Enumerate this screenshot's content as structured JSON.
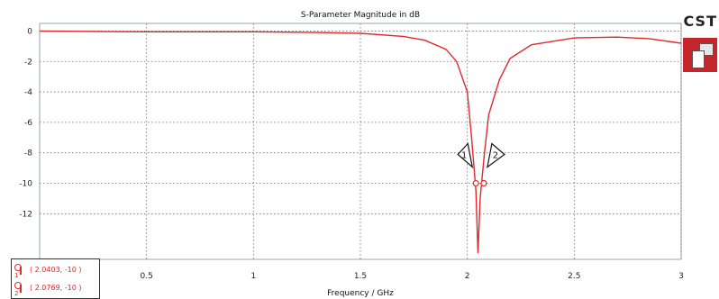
{
  "chart_data": {
    "type": "line",
    "title": "S-Parameter Magnitude in dB",
    "xlabel": "Frequency / GHz",
    "ylabel": "",
    "xlim": [
      0,
      3
    ],
    "ylim": [
      -15,
      0.5
    ],
    "x_ticks": [
      0.5,
      1,
      1.5,
      2,
      2.5,
      3
    ],
    "x_tick_labels": [
      "0.5",
      "1",
      "1.5",
      "2",
      "2.5",
      "3"
    ],
    "y_ticks": [
      0,
      -2,
      -4,
      -6,
      -8,
      -10,
      -12
    ],
    "y_tick_labels": [
      "0",
      "-2",
      "-4",
      "-6",
      "-8",
      "-10",
      "-12"
    ],
    "grid": true,
    "series": [
      {
        "color": "#e0292b",
        "x": [
          0.0,
          0.5,
          1.0,
          1.3,
          1.5,
          1.7,
          1.8,
          1.9,
          1.95,
          2.0,
          2.02,
          2.04,
          2.05,
          2.06,
          2.08,
          2.1,
          2.15,
          2.2,
          2.3,
          2.5,
          2.7,
          2.85,
          3.0
        ],
        "y": [
          0.0,
          -0.05,
          -0.05,
          -0.1,
          -0.15,
          -0.35,
          -0.6,
          -1.2,
          -2.0,
          -4.0,
          -7.0,
          -10.5,
          -14.6,
          -11.0,
          -8.0,
          -5.5,
          -3.2,
          -1.8,
          -0.9,
          -0.45,
          -0.4,
          -0.5,
          -0.8
        ]
      }
    ],
    "markers": [
      {
        "label": "1",
        "x": 2.0403,
        "y": -10
      },
      {
        "label": "2",
        "x": 2.0769,
        "y": -10
      }
    ]
  },
  "legend": {
    "entries": [
      {
        "num": "1",
        "text": "( 2.0403, -10 )"
      },
      {
        "num": "2",
        "text": "( 2.0769, -10 )"
      }
    ]
  },
  "brand": {
    "text": "CST"
  },
  "colors": {
    "series": "#e0292b",
    "logo": "#c4262b"
  }
}
